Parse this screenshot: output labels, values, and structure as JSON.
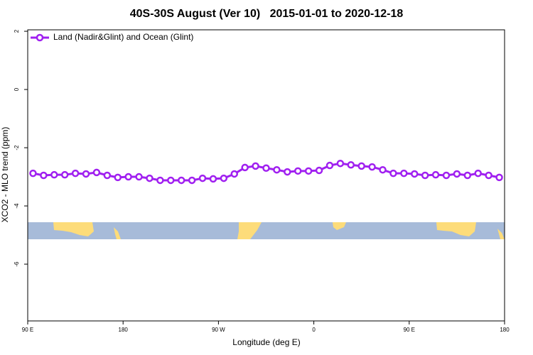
{
  "chart_data": {
    "type": "line",
    "title": "40S-30S August (Ver 10)   2015-01-01 to 2020-12-18",
    "x_label": "Longitude (deg E)",
    "y_label": "XCO2 - MLO trend (ppm)",
    "x": [
      95,
      105,
      115,
      125,
      135,
      145,
      155,
      165,
      175,
      185,
      195,
      205,
      215,
      225,
      235,
      245,
      255,
      265,
      275,
      285,
      295,
      305,
      315,
      325,
      335,
      345,
      355,
      365,
      375,
      385,
      395,
      405,
      415,
      425,
      435,
      445,
      455,
      465,
      475,
      485,
      495,
      505,
      515,
      525,
      535
    ],
    "series": [
      {
        "name": "Land (Nadir&Glint) and Ocean (Glint)",
        "color": "#a020f0",
        "values": [
          -2.88,
          -2.95,
          -2.93,
          -2.93,
          -2.88,
          -2.9,
          -2.85,
          -2.95,
          -3.02,
          -3.0,
          -3.0,
          -3.05,
          -3.12,
          -3.12,
          -3.12,
          -3.12,
          -3.05,
          -3.07,
          -3.05,
          -2.9,
          -2.68,
          -2.63,
          -2.7,
          -2.76,
          -2.83,
          -2.8,
          -2.8,
          -2.78,
          -2.61,
          -2.54,
          -2.59,
          -2.63,
          -2.66,
          -2.76,
          -2.88,
          -2.88,
          -2.9,
          -2.95,
          -2.93,
          -2.95,
          -2.9,
          -2.95,
          -2.88,
          -2.95,
          -3.02
        ]
      }
    ],
    "xlim": [
      90,
      540
    ],
    "xticks": [
      {
        "value": 90,
        "label": "90 E"
      },
      180,
      {
        "value": 270,
        "label": "90 W"
      },
      {
        "value": 360,
        "label": "0"
      },
      {
        "value": 450,
        "label": "90 E"
      },
      {
        "value": 540,
        "label": "180"
      }
    ],
    "ylim": [
      -7.95,
      2.05
    ],
    "yticks": [
      2,
      0,
      -2,
      -4,
      -6
    ],
    "legend": "top-left"
  }
}
